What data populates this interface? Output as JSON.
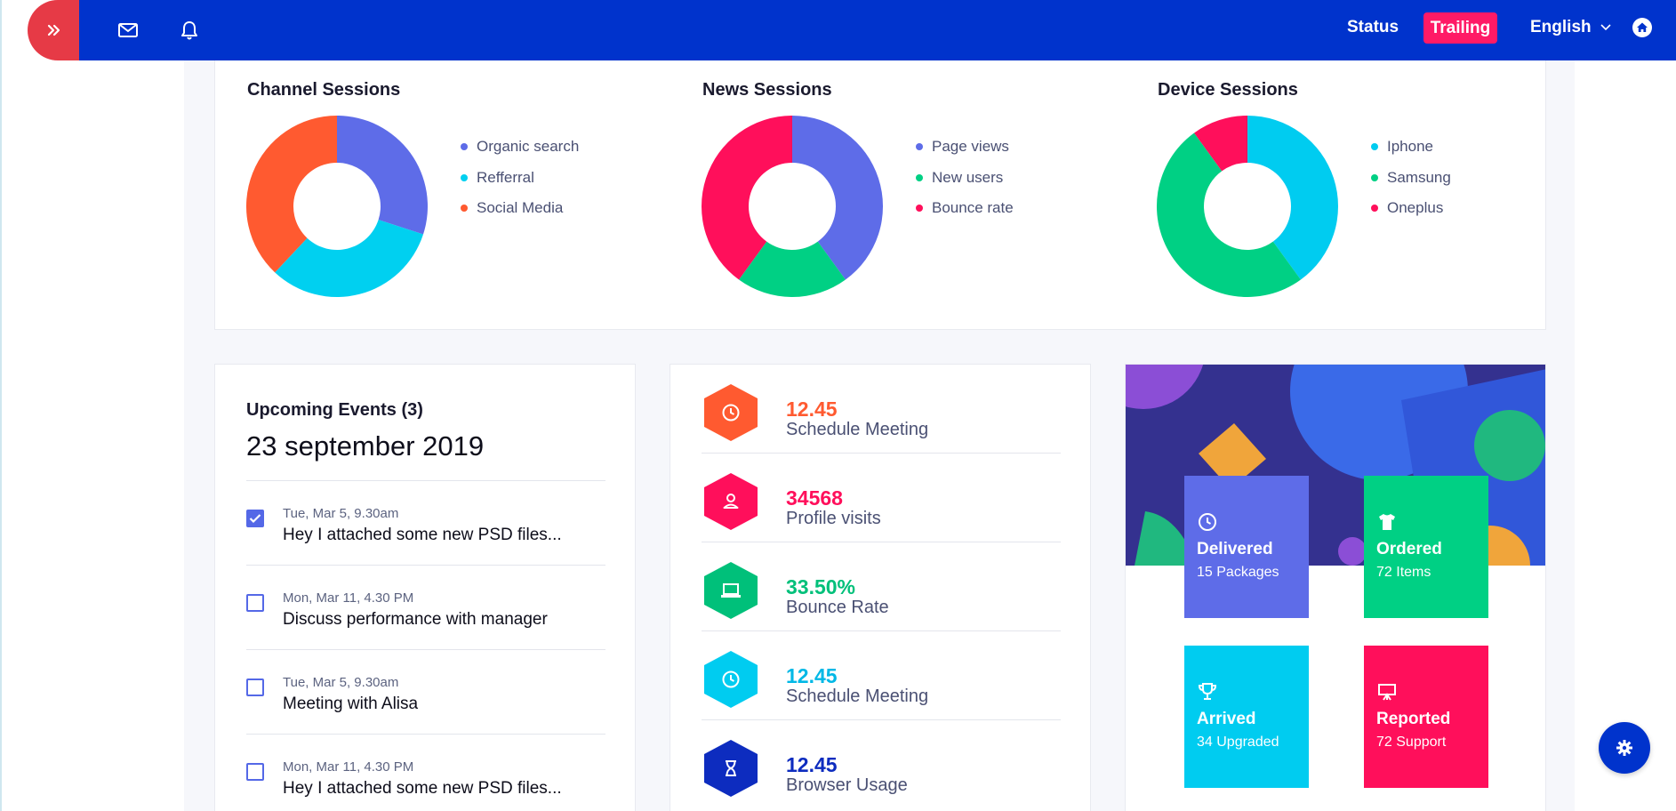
{
  "topbar": {
    "status_label": "Status",
    "trailing_label": "Trailing",
    "language": "English"
  },
  "sessions": [
    {
      "title": "Channel Sessions",
      "chart_data": {
        "type": "pie",
        "series": [
          {
            "name": "Organic search",
            "value": 30,
            "color": "#5e6ce8"
          },
          {
            "name": "Refferral",
            "value": 32,
            "color": "#00d0f0"
          },
          {
            "name": "Social Media",
            "value": 38,
            "color": "#ff5a30"
          }
        ]
      }
    },
    {
      "title": "News Sessions",
      "chart_data": {
        "type": "pie",
        "series": [
          {
            "name": "Page views",
            "value": 40,
            "color": "#5e6ce8"
          },
          {
            "name": "New users",
            "value": 20,
            "color": "#00d084"
          },
          {
            "name": "Bounce rate",
            "value": 40,
            "color": "#ff0f5b"
          }
        ]
      }
    },
    {
      "title": "Device Sessions",
      "chart_data": {
        "type": "pie",
        "series": [
          {
            "name": "Iphone",
            "value": 40,
            "color": "#00ccf0"
          },
          {
            "name": "Samsung",
            "value": 50,
            "color": "#00d084"
          },
          {
            "name": "Oneplus",
            "value": 10,
            "color": "#ff0f5b"
          }
        ]
      }
    }
  ],
  "events": {
    "heading": "Upcoming Events (3)",
    "date": "23 september 2019",
    "items": [
      {
        "time": "Tue, Mar 5, 9.30am",
        "text": "Hey I attached some new PSD files...",
        "checked": true
      },
      {
        "time": "Mon, Mar 11, 4.30 PM",
        "text": "Discuss performance with manager",
        "checked": false
      },
      {
        "time": "Tue, Mar 5, 9.30am",
        "text": "Meeting with Alisa",
        "checked": false
      },
      {
        "time": "Mon, Mar 11, 4.30 PM",
        "text": "Hey I attached some new PSD files...",
        "checked": false
      }
    ]
  },
  "stats": [
    {
      "value": "12.45",
      "label": "Schedule Meeting",
      "color": "#ff5a30",
      "icon": "clock-icon"
    },
    {
      "value": "34568",
      "label": "Profile visits",
      "color": "#ff0f5b",
      "icon": "user-icon"
    },
    {
      "value": "33.50%",
      "label": "Bounce Rate",
      "color": "#00c07a",
      "icon": "laptop-icon"
    },
    {
      "value": "12.45",
      "label": "Schedule Meeting",
      "color": "#00ccf0",
      "icon": "clock-icon"
    },
    {
      "value": "12.45",
      "label": "Browser Usage",
      "color": "#0d2cbf",
      "icon": "hourglass-icon"
    }
  ],
  "tiles": [
    {
      "title": "Delivered",
      "sub": "15 Packages",
      "color": "#5e6ce8",
      "icon": "clock-icon"
    },
    {
      "title": "Ordered",
      "sub": "72 Items",
      "color": "#00d084",
      "icon": "tshirt-icon"
    },
    {
      "title": "Arrived",
      "sub": "34 Upgraded",
      "color": "#00ccf0",
      "icon": "trophy-icon"
    },
    {
      "title": "Reported",
      "sub": "72 Support",
      "color": "#ff0f5b",
      "icon": "presentation-icon"
    }
  ]
}
